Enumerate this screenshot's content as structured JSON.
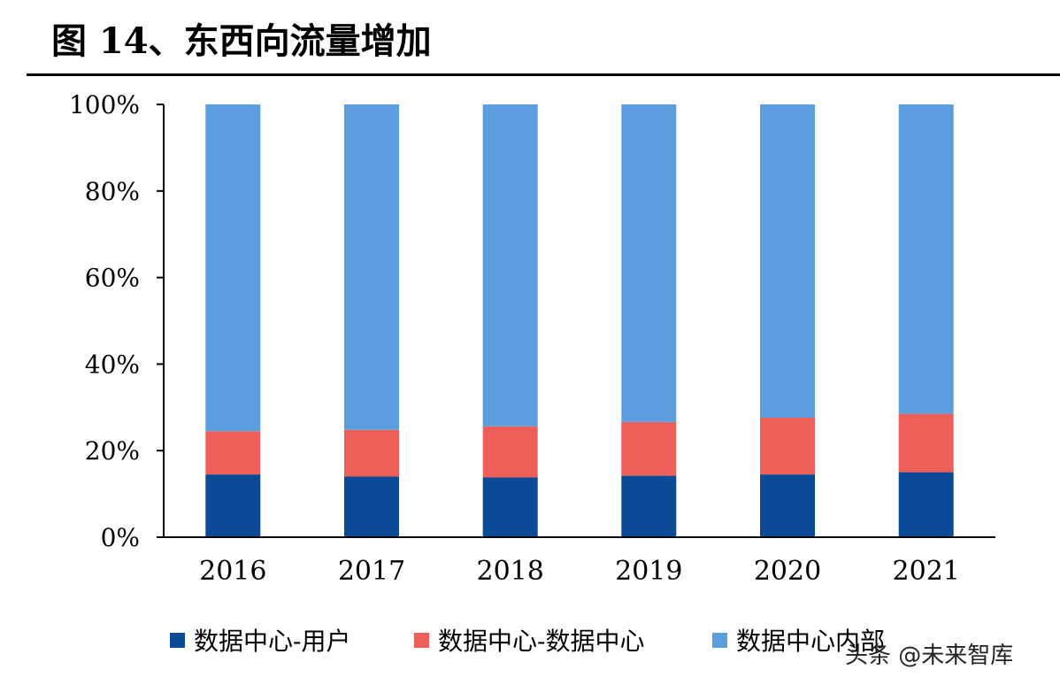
{
  "figure": {
    "title": "图 14、东西向流量增加",
    "watermark": "头条 @未来智库"
  },
  "chart_data": {
    "type": "bar",
    "stacked": true,
    "title": "图 14、东西向流量增加",
    "categories": [
      "2016",
      "2017",
      "2018",
      "2019",
      "2020",
      "2021"
    ],
    "series": [
      {
        "name": "数据中心-用户",
        "color": "#0B4A97",
        "values": [
          14.5,
          14.0,
          13.8,
          14.2,
          14.5,
          15.0
        ]
      },
      {
        "name": "数据中心-数据中心",
        "color": "#EF5F5A",
        "values": [
          10.0,
          10.8,
          11.8,
          12.4,
          13.1,
          13.5
        ]
      },
      {
        "name": "数据中心内部",
        "color": "#5B9EE0",
        "values": [
          75.5,
          75.2,
          74.4,
          73.4,
          72.4,
          71.5
        ]
      }
    ],
    "y_ticks": [
      "0%",
      "20%",
      "40%",
      "60%",
      "80%",
      "100%"
    ],
    "ylim": [
      0,
      100
    ],
    "y_unit": "%",
    "grid": false,
    "legend_position": "bottom"
  }
}
